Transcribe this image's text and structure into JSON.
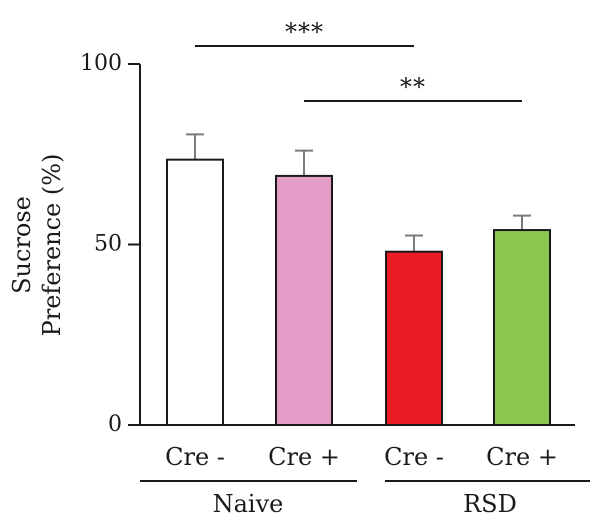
{
  "chart_data": {
    "type": "bar",
    "ylabel_lines": [
      "Sucrose",
      "Preference (%)"
    ],
    "ylim": [
      0,
      100
    ],
    "yticks": [
      "0",
      "50",
      "100"
    ],
    "grid": false,
    "bars": [
      {
        "label": "Cre -",
        "group": "Naive",
        "value": 73.5,
        "error": 7,
        "color": "#ffffff"
      },
      {
        "label": "Cre +",
        "group": "Naive",
        "value": 69,
        "error": 7,
        "color": "#e49dc6"
      },
      {
        "label": "Cre -",
        "group": "RSD",
        "value": 48,
        "error": 4.5,
        "color": "#ec1c24"
      },
      {
        "label": "Cre +",
        "group": "RSD",
        "value": 54,
        "error": 4,
        "color": "#8cc751"
      }
    ],
    "groups": [
      "Naive",
      "RSD"
    ],
    "significance": [
      {
        "from": 0,
        "to": 2,
        "label": "***"
      },
      {
        "from": 1,
        "to": 3,
        "label": "**"
      }
    ]
  }
}
